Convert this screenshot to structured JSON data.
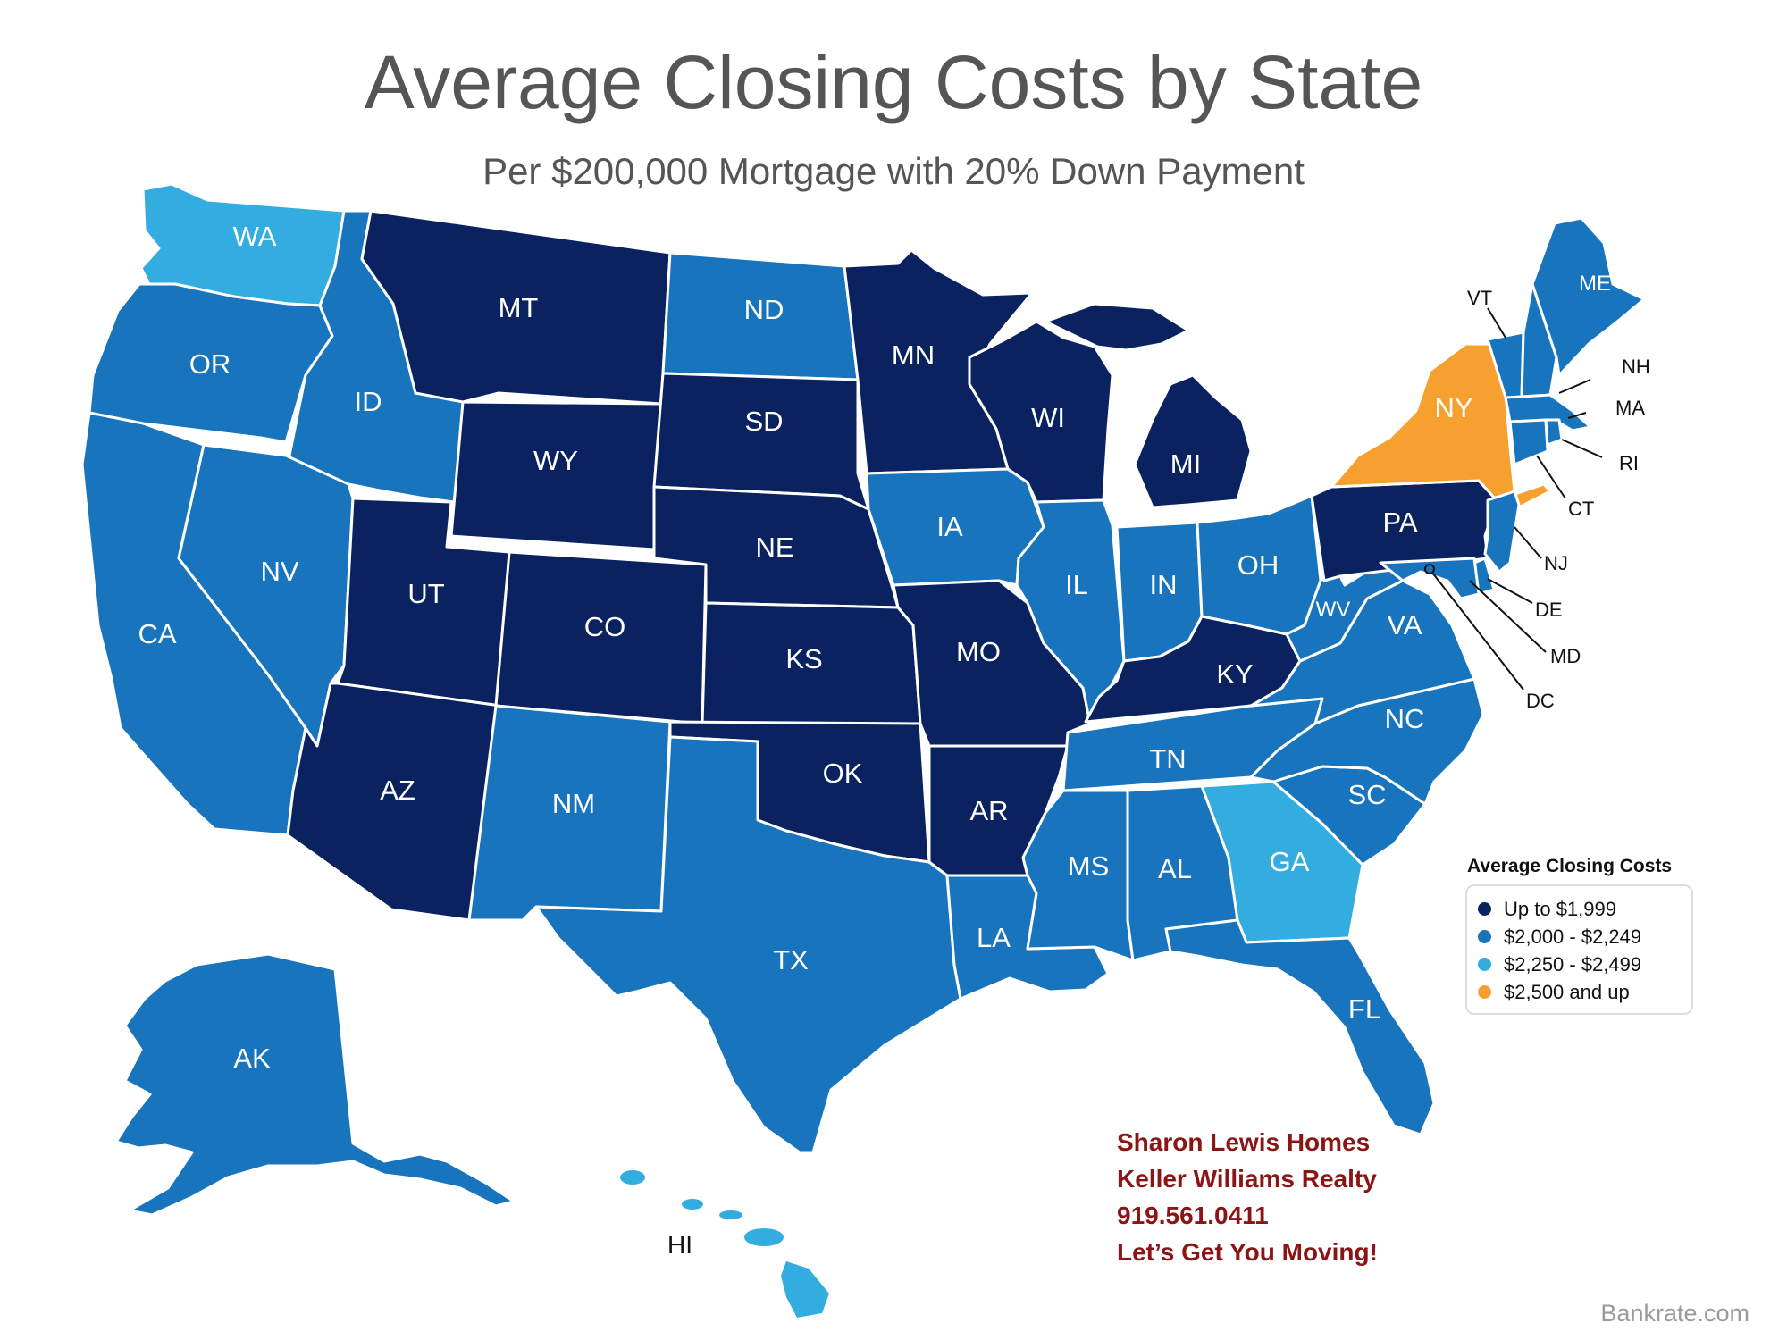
{
  "title": "Average Closing Costs by State",
  "subtitle": "Per $200,000 Mortgage with 20% Down Payment",
  "colors": {
    "c1": "#0a2260",
    "c2": "#1874bc",
    "c3": "#33ace0",
    "c4": "#f6a030"
  },
  "legend": {
    "title": "Average Closing Costs",
    "items": [
      {
        "label": "Up to $1,999",
        "cat": "c1"
      },
      {
        "label": "$2,000 - $2,249",
        "cat": "c2"
      },
      {
        "label": "$2,250 - $2,499",
        "cat": "c3"
      },
      {
        "label": "$2,500 and up",
        "cat": "c4"
      }
    ]
  },
  "states": {
    "WA": {
      "label": "WA",
      "cat": "c3"
    },
    "OR": {
      "label": "OR",
      "cat": "c2"
    },
    "CA": {
      "label": "CA",
      "cat": "c2"
    },
    "ID": {
      "label": "ID",
      "cat": "c2"
    },
    "NV": {
      "label": "NV",
      "cat": "c2"
    },
    "MT": {
      "label": "MT",
      "cat": "c1"
    },
    "WY": {
      "label": "WY",
      "cat": "c1"
    },
    "UT": {
      "label": "UT",
      "cat": "c1"
    },
    "AZ": {
      "label": "AZ",
      "cat": "c1"
    },
    "CO": {
      "label": "CO",
      "cat": "c1"
    },
    "NM": {
      "label": "NM",
      "cat": "c2"
    },
    "ND": {
      "label": "ND",
      "cat": "c2"
    },
    "SD": {
      "label": "SD",
      "cat": "c1"
    },
    "NE": {
      "label": "NE",
      "cat": "c1"
    },
    "KS": {
      "label": "KS",
      "cat": "c1"
    },
    "OK": {
      "label": "OK",
      "cat": "c1"
    },
    "TX": {
      "label": "TX",
      "cat": "c2"
    },
    "MN": {
      "label": "MN",
      "cat": "c1"
    },
    "IA": {
      "label": "IA",
      "cat": "c2"
    },
    "MO": {
      "label": "MO",
      "cat": "c1"
    },
    "AR": {
      "label": "AR",
      "cat": "c1"
    },
    "LA": {
      "label": "LA",
      "cat": "c2"
    },
    "WI": {
      "label": "WI",
      "cat": "c1"
    },
    "IL": {
      "label": "IL",
      "cat": "c2"
    },
    "MI": {
      "label": "MI",
      "cat": "c1"
    },
    "IN": {
      "label": "IN",
      "cat": "c2"
    },
    "OH": {
      "label": "OH",
      "cat": "c2"
    },
    "KY": {
      "label": "KY",
      "cat": "c1"
    },
    "TN": {
      "label": "TN",
      "cat": "c2"
    },
    "MS": {
      "label": "MS",
      "cat": "c2"
    },
    "AL": {
      "label": "AL",
      "cat": "c2"
    },
    "GA": {
      "label": "GA",
      "cat": "c3"
    },
    "FL": {
      "label": "FL",
      "cat": "c2"
    },
    "SC": {
      "label": "SC",
      "cat": "c2"
    },
    "NC": {
      "label": "NC",
      "cat": "c2"
    },
    "VA": {
      "label": "VA",
      "cat": "c2"
    },
    "WV": {
      "label": "WV",
      "cat": "c2"
    },
    "PA": {
      "label": "PA",
      "cat": "c1"
    },
    "NY": {
      "label": "NY",
      "cat": "c4"
    },
    "VT": {
      "label": "VT",
      "cat": "c2"
    },
    "NH": {
      "label": "NH",
      "cat": "c2"
    },
    "ME": {
      "label": "ME",
      "cat": "c2"
    },
    "MA": {
      "label": "MA",
      "cat": "c2"
    },
    "RI": {
      "label": "RI",
      "cat": "c2"
    },
    "CT": {
      "label": "CT",
      "cat": "c2"
    },
    "NJ": {
      "label": "NJ",
      "cat": "c2"
    },
    "DE": {
      "label": "DE",
      "cat": "c2"
    },
    "MD": {
      "label": "MD",
      "cat": "c2"
    },
    "DC": {
      "label": "DC",
      "cat": "c2"
    },
    "AK": {
      "label": "AK",
      "cat": "c2"
    },
    "HI": {
      "label": "HI",
      "cat": "c3"
    }
  },
  "agent": {
    "line1": "Sharon Lewis Homes",
    "line2": "Keller Williams Realty",
    "line3": "919.561.0411",
    "line4": "Let’s Get You Moving!"
  },
  "source": "Bankrate.com"
}
